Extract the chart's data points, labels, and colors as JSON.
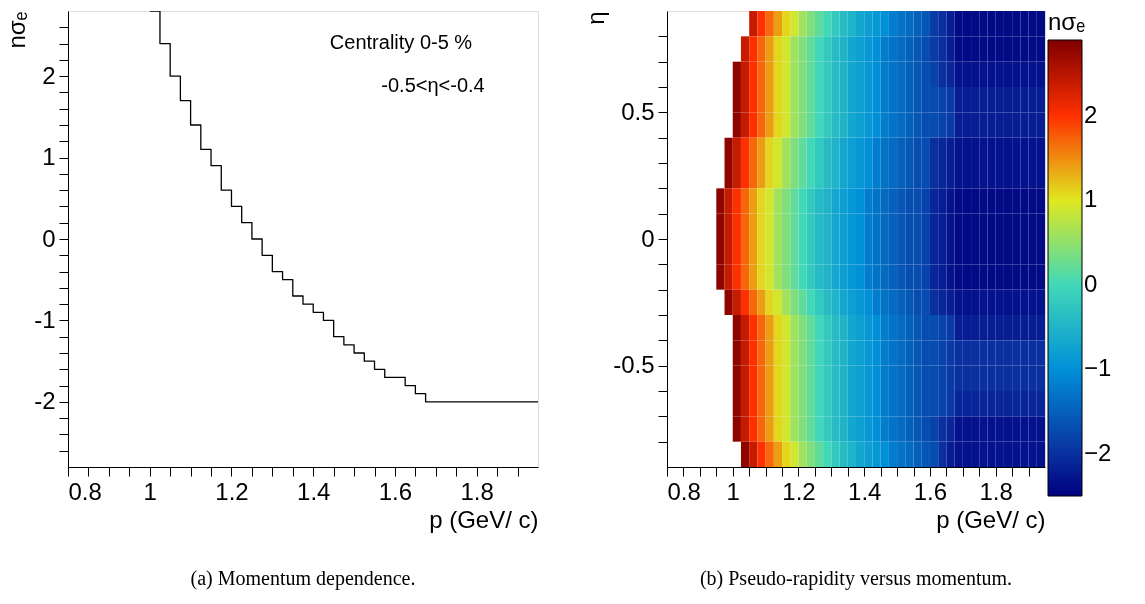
{
  "chart_data": [
    {
      "type": "step",
      "xlabel": "p (GeV/ c)",
      "ylabel": "nσₑ",
      "color": "#000000",
      "marker": "none",
      "line_style": "solid",
      "grid": false,
      "x": [
        1.0,
        1.025,
        1.05,
        1.075,
        1.1,
        1.125,
        1.15,
        1.175,
        1.2,
        1.225,
        1.25,
        1.275,
        1.3,
        1.325,
        1.35,
        1.375,
        1.4,
        1.425,
        1.45,
        1.475,
        1.5,
        1.525,
        1.55,
        1.575,
        1.6,
        1.625,
        1.65,
        1.675,
        1.95
      ],
      "values": [
        2.8,
        2.4,
        2.0,
        1.7,
        1.4,
        1.1,
        0.9,
        0.6,
        0.4,
        0.2,
        0.0,
        -0.2,
        -0.4,
        -0.5,
        -0.7,
        -0.8,
        -0.9,
        -1.0,
        -1.2,
        -1.3,
        -1.4,
        -1.5,
        -1.6,
        -1.7,
        -1.7,
        -1.8,
        -1.9,
        -2.0,
        -2.0
      ],
      "xlim": [
        0.8,
        1.95
      ],
      "ylim": [
        -2.8,
        2.8
      ],
      "xticks": [
        0.8,
        {
          "value": 0.85,
          "label": null
        },
        {
          "value": 0.9,
          "label": null
        },
        {
          "value": 0.95,
          "label": null
        },
        1,
        {
          "value": 1.05,
          "label": null
        },
        {
          "value": 1.1,
          "label": null
        },
        {
          "value": 1.15,
          "label": null
        },
        1.2,
        {
          "value": 1.25,
          "label": null
        },
        {
          "value": 1.3,
          "label": null
        },
        {
          "value": 1.35,
          "label": null
        },
        1.4,
        {
          "value": 1.45,
          "label": null
        },
        {
          "value": 1.5,
          "label": null
        },
        {
          "value": 1.55,
          "label": null
        },
        1.6,
        {
          "value": 1.65,
          "label": null
        },
        {
          "value": 1.7,
          "label": null
        },
        {
          "value": 1.75,
          "label": null
        },
        1.8,
        {
          "value": 1.85,
          "label": null
        },
        {
          "value": 1.9,
          "label": null
        }
      ],
      "yticks": [
        {
          "value": -2.6,
          "label": null
        },
        {
          "value": -2.4,
          "label": null
        },
        {
          "value": -2.2,
          "label": null
        },
        -2,
        {
          "value": -1.8,
          "label": null
        },
        {
          "value": -1.6,
          "label": null
        },
        {
          "value": -1.4,
          "label": null
        },
        {
          "value": -1.2,
          "label": null
        },
        -1,
        {
          "value": -0.8,
          "label": null
        },
        {
          "value": -0.6,
          "label": null
        },
        {
          "value": -0.4,
          "label": null
        },
        {
          "value": -0.2,
          "label": null
        },
        0,
        {
          "value": 0.2,
          "label": null
        },
        {
          "value": 0.4,
          "label": null
        },
        {
          "value": 0.6,
          "label": null
        },
        {
          "value": 0.8,
          "label": null
        },
        1,
        {
          "value": 1.2,
          "label": null
        },
        {
          "value": 1.4,
          "label": null
        },
        {
          "value": 1.6,
          "label": null
        },
        {
          "value": 1.8,
          "label": null
        },
        2,
        {
          "value": 2.2,
          "label": null
        },
        {
          "value": 2.4,
          "label": null
        },
        {
          "value": 2.6,
          "label": null
        }
      ],
      "annotations": [
        "Centrality 0-5 %",
        "-0.5<η<-0.4",
        "(a) Momentum dependence."
      ]
    },
    {
      "type": "heatmap",
      "xlabel": "p (GeV/ c)",
      "ylabel": "η",
      "clabel": "nσₑ",
      "cells": [
        [
          null,
          null,
          null,
          null,
          null,
          null,
          null,
          null,
          null,
          null,
          2.4,
          2.0,
          1.7,
          1.4,
          1.1,
          0.9,
          0.6,
          0.4,
          0.2,
          0.0,
          -0.2,
          -0.4,
          -0.5,
          -0.7,
          -0.8,
          -0.9,
          -1.0,
          -1.2,
          -1.3,
          -1.4,
          -1.5,
          -1.6,
          -1.9,
          -2.0,
          -2.2,
          -2.4,
          -2.4,
          -2.4,
          -2.4,
          -2.4,
          -2.4,
          -2.4,
          -2.4,
          -2.4,
          -2.4,
          -2.4
        ],
        [
          null,
          null,
          null,
          null,
          null,
          null,
          null,
          null,
          null,
          2.4,
          2.0,
          1.7,
          1.4,
          1.1,
          0.9,
          0.6,
          0.4,
          0.2,
          0.0,
          -0.2,
          -0.4,
          -0.5,
          -0.7,
          -0.8,
          -0.9,
          -1.0,
          -1.2,
          -1.3,
          -1.4,
          -1.5,
          -1.6,
          -1.7,
          -1.9,
          -2.0,
          -2.2,
          -2.4,
          -2.4,
          -2.4,
          -2.4,
          -2.4,
          -2.4,
          -2.4,
          -2.4,
          -2.4,
          -2.4,
          -2.4
        ],
        [
          null,
          null,
          null,
          null,
          null,
          null,
          null,
          null,
          2.8,
          2.4,
          2.0,
          1.7,
          1.4,
          1.1,
          0.9,
          0.6,
          0.4,
          0.2,
          0.0,
          -0.2,
          -0.4,
          -0.5,
          -0.7,
          -0.8,
          -0.9,
          -1.0,
          -1.2,
          -1.3,
          -1.4,
          -1.5,
          -1.6,
          -1.7,
          -1.8,
          -2.0,
          -2.1,
          -2.3,
          -2.3,
          -2.3,
          -2.3,
          -2.3,
          -2.3,
          -2.3,
          -2.3,
          -2.3,
          -2.3,
          -2.3
        ],
        [
          null,
          null,
          null,
          null,
          null,
          null,
          null,
          null,
          2.8,
          2.4,
          2.0,
          1.7,
          1.4,
          1.1,
          0.9,
          0.6,
          0.4,
          0.2,
          0.0,
          -0.2,
          -0.4,
          -0.5,
          -0.7,
          -0.8,
          -0.9,
          -1.0,
          -1.2,
          -1.3,
          -1.4,
          -1.5,
          -1.6,
          -1.7,
          -1.7,
          -1.8,
          -1.9,
          -2.2,
          -2.2,
          -2.2,
          -2.2,
          -2.2,
          -2.2,
          -2.2,
          -2.2,
          -2.2,
          -2.2,
          -2.2
        ],
        [
          null,
          null,
          null,
          null,
          null,
          null,
          null,
          null,
          2.8,
          2.4,
          2.0,
          1.7,
          1.4,
          1.1,
          0.9,
          0.6,
          0.4,
          0.2,
          0.0,
          -0.2,
          -0.4,
          -0.5,
          -0.7,
          -0.8,
          -0.9,
          -1.0,
          -1.2,
          -1.3,
          -1.4,
          -1.5,
          -1.6,
          -1.7,
          -1.7,
          -1.8,
          -1.9,
          -2.2,
          -2.2,
          -2.2,
          -2.2,
          -2.2,
          -2.2,
          -2.2,
          -2.2,
          -2.2,
          -2.2,
          -2.2
        ],
        [
          null,
          null,
          null,
          null,
          null,
          null,
          null,
          2.8,
          2.4,
          2.0,
          1.7,
          1.4,
          1.1,
          0.9,
          0.6,
          0.4,
          0.2,
          0.0,
          -0.2,
          -0.4,
          -0.5,
          -0.7,
          -0.8,
          -0.9,
          -1.0,
          -1.2,
          -1.3,
          -1.4,
          -1.5,
          -1.6,
          -1.7,
          -1.7,
          -2.0,
          -2.1,
          -2.2,
          -2.3,
          -2.3,
          -2.3,
          -2.3,
          -2.3,
          -2.3,
          -2.3,
          -2.3,
          -2.3,
          -2.3,
          -2.3
        ],
        [
          null,
          null,
          null,
          null,
          null,
          null,
          null,
          2.8,
          2.4,
          2.0,
          1.7,
          1.4,
          1.1,
          0.9,
          0.6,
          0.4,
          0.2,
          0.0,
          -0.2,
          -0.4,
          -0.5,
          -0.7,
          -0.8,
          -0.9,
          -1.0,
          -1.2,
          -1.3,
          -1.4,
          -1.5,
          -1.6,
          -1.7,
          -1.7,
          -2.0,
          -2.1,
          -2.2,
          -2.3,
          -2.3,
          -2.3,
          -2.3,
          -2.3,
          -2.3,
          -2.3,
          -2.3,
          -2.3,
          -2.3,
          -2.3
        ],
        [
          null,
          null,
          null,
          null,
          null,
          null,
          2.8,
          2.4,
          2.0,
          1.7,
          1.4,
          1.1,
          0.9,
          0.6,
          0.4,
          0.2,
          0.0,
          -0.2,
          -0.4,
          -0.5,
          -0.7,
          -0.8,
          -0.9,
          -1.0,
          -1.2,
          -1.3,
          -1.4,
          -1.5,
          -1.6,
          -1.7,
          -1.7,
          -1.8,
          -2.1,
          -2.2,
          -2.3,
          -2.4,
          -2.4,
          -2.4,
          -2.4,
          -2.4,
          -2.4,
          -2.4,
          -2.4,
          -2.4,
          -2.4,
          -2.4
        ],
        [
          null,
          null,
          null,
          null,
          null,
          null,
          2.8,
          2.4,
          2.0,
          1.7,
          1.4,
          1.1,
          0.9,
          0.6,
          0.4,
          0.2,
          0.0,
          -0.2,
          -0.4,
          -0.5,
          -0.7,
          -0.8,
          -0.9,
          -1.0,
          -1.2,
          -1.3,
          -1.4,
          -1.5,
          -1.6,
          -1.7,
          -1.7,
          -1.8,
          -2.1,
          -2.2,
          -2.3,
          -2.4,
          -2.4,
          -2.4,
          -2.4,
          -2.4,
          -2.4,
          -2.4,
          -2.4,
          -2.4,
          -2.4,
          -2.4
        ],
        [
          null,
          null,
          null,
          null,
          null,
          null,
          2.8,
          2.4,
          2.0,
          1.7,
          1.4,
          1.1,
          0.9,
          0.6,
          0.4,
          0.2,
          0.0,
          -0.2,
          -0.4,
          -0.5,
          -0.7,
          -0.8,
          -0.9,
          -1.0,
          -1.2,
          -1.3,
          -1.4,
          -1.5,
          -1.6,
          -1.7,
          -1.7,
          -1.8,
          -2.1,
          -2.2,
          -2.3,
          -2.4,
          -2.4,
          -2.4,
          -2.4,
          -2.4,
          -2.4,
          -2.4,
          -2.4,
          -2.4,
          -2.4,
          -2.4
        ],
        [
          null,
          null,
          null,
          null,
          null,
          null,
          2.8,
          2.4,
          2.0,
          1.7,
          1.4,
          1.1,
          0.9,
          0.6,
          0.4,
          0.2,
          0.0,
          -0.2,
          -0.4,
          -0.5,
          -0.7,
          -0.8,
          -0.9,
          -1.0,
          -1.2,
          -1.3,
          -1.4,
          -1.5,
          -1.6,
          -1.7,
          -1.7,
          -1.8,
          -2.1,
          -2.2,
          -2.3,
          -2.4,
          -2.4,
          -2.4,
          -2.4,
          -2.4,
          -2.4,
          -2.4,
          -2.4,
          -2.4,
          -2.4,
          -2.4
        ],
        [
          null,
          null,
          null,
          null,
          null,
          null,
          null,
          2.8,
          2.4,
          2.0,
          1.7,
          1.4,
          1.1,
          0.9,
          0.6,
          0.4,
          0.2,
          0.0,
          -0.2,
          -0.4,
          -0.5,
          -0.7,
          -0.8,
          -0.9,
          -1.0,
          -1.2,
          -1.3,
          -1.4,
          -1.5,
          -1.6,
          -1.7,
          -1.7,
          -2.0,
          -2.1,
          -2.2,
          -2.3,
          -2.3,
          -2.3,
          -2.3,
          -2.3,
          -2.3,
          -2.3,
          -2.3,
          -2.3,
          -2.3,
          -2.3
        ],
        [
          null,
          null,
          null,
          null,
          null,
          null,
          null,
          null,
          2.8,
          2.4,
          2.0,
          1.7,
          1.4,
          1.1,
          0.9,
          0.6,
          0.4,
          0.2,
          0.0,
          -0.2,
          -0.4,
          -0.5,
          -0.7,
          -0.8,
          -0.9,
          -1.0,
          -1.2,
          -1.3,
          -1.4,
          -1.5,
          -1.6,
          -1.7,
          -1.7,
          -1.8,
          -1.9,
          -2.2,
          -2.2,
          -2.2,
          -2.2,
          -2.2,
          -2.2,
          -2.2,
          -2.2,
          -2.2,
          -2.2,
          -2.2
        ],
        [
          null,
          null,
          null,
          null,
          null,
          null,
          null,
          null,
          2.8,
          2.4,
          2.0,
          1.7,
          1.4,
          1.1,
          0.9,
          0.6,
          0.4,
          0.2,
          0.0,
          -0.2,
          -0.4,
          -0.5,
          -0.7,
          -0.8,
          -0.9,
          -1.0,
          -1.2,
          -1.3,
          -1.4,
          -1.5,
          -1.6,
          -1.7,
          -1.7,
          -1.8,
          -1.9,
          -2.0,
          -2.0,
          -2.0,
          -2.0,
          -2.0,
          -2.0,
          -2.0,
          -2.0,
          -2.0,
          -2.0,
          -2.0
        ],
        [
          null,
          null,
          null,
          null,
          null,
          null,
          null,
          null,
          2.8,
          2.4,
          2.0,
          1.7,
          1.4,
          1.1,
          0.9,
          0.6,
          0.4,
          0.2,
          0.0,
          -0.2,
          -0.4,
          -0.5,
          -0.7,
          -0.8,
          -0.9,
          -1.0,
          -1.2,
          -1.3,
          -1.4,
          -1.5,
          -1.6,
          -1.7,
          -1.7,
          -1.8,
          -1.9,
          -2.0,
          -2.0,
          -2.0,
          -2.0,
          -2.0,
          -2.0,
          -2.0,
          -2.0,
          -2.0,
          -2.0,
          -2.0
        ],
        [
          null,
          null,
          null,
          null,
          null,
          null,
          null,
          null,
          2.8,
          2.4,
          2.0,
          1.7,
          1.4,
          1.1,
          0.9,
          0.6,
          0.4,
          0.2,
          0.0,
          -0.2,
          -0.4,
          -0.5,
          -0.7,
          -0.8,
          -0.9,
          -1.0,
          -1.2,
          -1.3,
          -1.4,
          -1.5,
          -1.6,
          -1.7,
          -1.7,
          -1.8,
          -1.9,
          -2.1,
          -2.1,
          -2.1,
          -2.1,
          -2.1,
          -2.1,
          -2.1,
          -2.1,
          -2.1,
          -2.1,
          -2.1
        ],
        [
          null,
          null,
          null,
          null,
          null,
          null,
          null,
          null,
          2.8,
          2.4,
          2.0,
          1.7,
          1.4,
          1.1,
          0.9,
          0.6,
          0.4,
          0.2,
          0.0,
          -0.2,
          -0.4,
          -0.5,
          -0.7,
          -0.8,
          -0.9,
          -1.0,
          -1.2,
          -1.3,
          -1.4,
          -1.5,
          -1.6,
          -1.7,
          -1.8,
          -2.0,
          -2.1,
          -2.3,
          -2.3,
          -2.3,
          -2.3,
          -2.3,
          -2.3,
          -2.3,
          -2.3,
          -2.3,
          -2.3,
          -2.3
        ],
        [
          null,
          null,
          null,
          null,
          null,
          null,
          null,
          null,
          null,
          2.8,
          2.4,
          2.0,
          1.7,
          1.4,
          1.1,
          0.9,
          0.6,
          0.4,
          0.2,
          0.0,
          -0.2,
          -0.4,
          -0.5,
          -0.7,
          -0.8,
          -0.9,
          -1.0,
          -1.2,
          -1.3,
          -1.4,
          -1.5,
          -1.6,
          -1.7,
          -2.0,
          -2.2,
          -2.3,
          -2.3,
          -2.3,
          -2.3,
          -2.3,
          -2.3,
          -2.3,
          -2.3,
          -2.3,
          -2.3,
          -2.3
        ]
      ],
      "clim": [
        -2.5,
        2.9
      ],
      "cticks": [
        -2,
        -1,
        0,
        1,
        2
      ],
      "colors": [
        "#000080",
        "#0a30a0",
        "#0090d8",
        "#40d8b8",
        "#e0e820",
        "#ff3000",
        "#800000"
      ],
      "xlim": [
        0.8,
        1.95
      ],
      "ylim": [
        -0.9,
        0.9
      ],
      "xticks": [
        0.8,
        {
          "value": 0.85,
          "label": null
        },
        {
          "value": 0.9,
          "label": null
        },
        {
          "value": 0.95,
          "label": null
        },
        1,
        {
          "value": 1.05,
          "label": null
        },
        {
          "value": 1.1,
          "label": null
        },
        {
          "value": 1.15,
          "label": null
        },
        1.2,
        {
          "value": 1.25,
          "label": null
        },
        {
          "value": 1.3,
          "label": null
        },
        {
          "value": 1.35,
          "label": null
        },
        1.4,
        {
          "value": 1.45,
          "label": null
        },
        {
          "value": 1.5,
          "label": null
        },
        {
          "value": 1.55,
          "label": null
        },
        1.6,
        {
          "value": 1.65,
          "label": null
        },
        {
          "value": 1.7,
          "label": null
        },
        {
          "value": 1.75,
          "label": null
        },
        1.8,
        {
          "value": 1.85,
          "label": null
        },
        {
          "value": 1.9,
          "label": null
        }
      ],
      "yticks": [
        {
          "value": -0.8,
          "label": null
        },
        {
          "value": -0.7,
          "label": null
        },
        {
          "value": -0.6,
          "label": null
        },
        -0.5,
        {
          "value": -0.4,
          "label": null
        },
        {
          "value": -0.3,
          "label": null
        },
        {
          "value": -0.2,
          "label": null
        },
        {
          "value": -0.1,
          "label": null
        },
        0,
        {
          "value": 0.1,
          "label": null
        },
        {
          "value": 0.2,
          "label": null
        },
        {
          "value": 0.3,
          "label": null
        },
        {
          "value": 0.4,
          "label": null
        },
        0.5,
        {
          "value": 0.6,
          "label": null
        },
        {
          "value": 0.7,
          "label": null
        },
        {
          "value": 0.8,
          "label": null
        }
      ],
      "annotations": [
        "(b) Pseudo-rapidity versus momentum."
      ]
    }
  ]
}
